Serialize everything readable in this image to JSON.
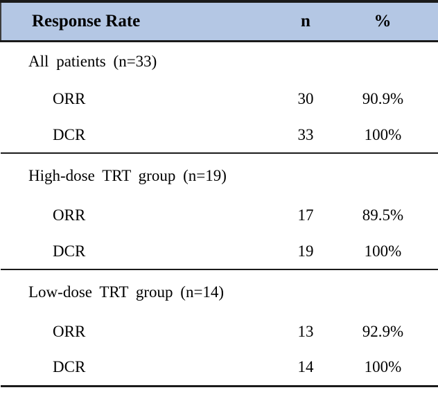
{
  "table": {
    "header": {
      "col1": "Response Rate",
      "col2": "n",
      "col3": "%"
    },
    "sections": [
      {
        "title": "All patients (n=33)",
        "rows": [
          {
            "label": "ORR",
            "n": "30",
            "pct": "90.9%"
          },
          {
            "label": "DCR",
            "n": "33",
            "pct": "100%"
          }
        ]
      },
      {
        "title": "High-dose TRT group (n=19)",
        "rows": [
          {
            "label": "ORR",
            "n": "17",
            "pct": "89.5%"
          },
          {
            "label": "DCR",
            "n": "19",
            "pct": "100%"
          }
        ]
      },
      {
        "title": "Low-dose TRT group (n=14)",
        "rows": [
          {
            "label": "ORR",
            "n": "13",
            "pct": "92.9%"
          },
          {
            "label": "DCR",
            "n": "14",
            "pct": "100%"
          }
        ]
      }
    ],
    "colors": {
      "header_bg": "#b4c7e4",
      "border": "#1a1a1a",
      "text": "#000000"
    }
  }
}
